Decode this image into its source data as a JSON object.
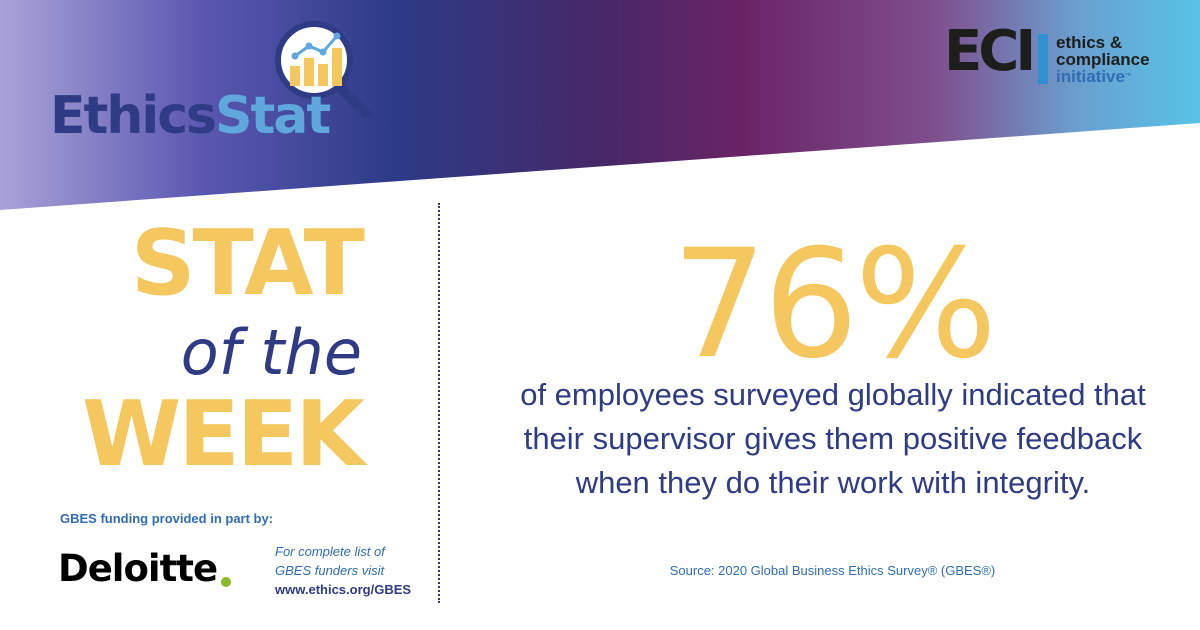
{
  "brand": {
    "ethicsstat_part1": "Ethics",
    "ethicsstat_part2": "Stat",
    "eci_letters": "ECI",
    "eci_line1": "ethics &",
    "eci_line2": "compliance",
    "eci_line3": "initiative",
    "eci_tm": "™"
  },
  "stat_of_week": {
    "line1": "STAT",
    "line2": "of the",
    "line3": "WEEK"
  },
  "statistic": {
    "value": "76%",
    "description": "of employees surveyed globally indicated that their supervisor gives them positive feedback when they do their work with integrity.",
    "source": "Source: 2020 Global Business Ethics Survey® (GBES®)"
  },
  "funding": {
    "label": "GBES funding provided in part by:",
    "sponsor": "Deloitte",
    "note_line1": "For complete list of",
    "note_line2": "GBES funders visit",
    "url": "www.ethics.org/GBES"
  },
  "colors": {
    "accent_yellow": "#f4c75f",
    "navy": "#2f3b84",
    "blue": "#2f6db5",
    "light_blue": "#5fa7dc",
    "deloitte_green": "#86bc25"
  },
  "icons": [
    "magnifier-bar-chart-icon"
  ]
}
